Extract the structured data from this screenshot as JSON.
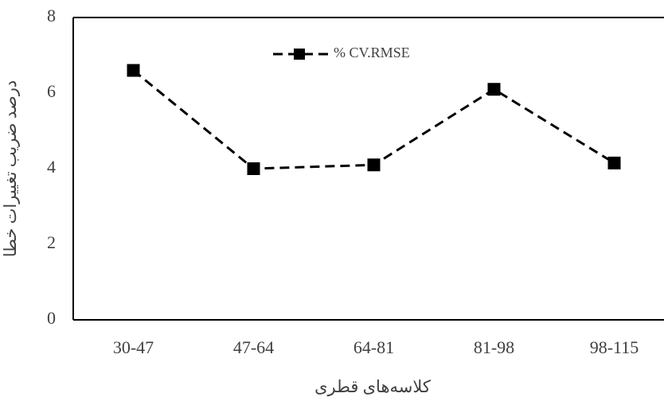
{
  "chart_data": {
    "type": "line",
    "y_label": "درصد ضریب تغییرات خطا",
    "x_label": "کلاسه‌های قطری",
    "categories": [
      "30-47",
      "47-64",
      "64-81",
      "81-98",
      "98-115"
    ],
    "series": [
      {
        "name": "% CV.RMSE",
        "color": "#000000",
        "values": [
          6.6,
          4.0,
          4.1,
          6.1,
          4.15
        ]
      }
    ],
    "ylim": [
      0,
      8
    ],
    "yticks": [
      0,
      2,
      4,
      6,
      8
    ],
    "grid": false
  }
}
